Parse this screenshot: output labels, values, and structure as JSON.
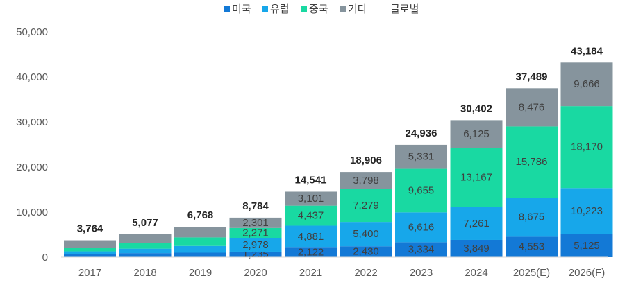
{
  "chart_data": {
    "type": "bar",
    "stacked": true,
    "categories": [
      "2017",
      "2018",
      "2019",
      "2020",
      "2021",
      "2022",
      "2023",
      "2024",
      "2025(E)",
      "2026(F)"
    ],
    "series": [
      {
        "name": "미국",
        "color": "#1379d6",
        "values": [
          null,
          null,
          null,
          1235,
          2122,
          2430,
          3334,
          3849,
          4553,
          5125
        ]
      },
      {
        "name": "유럽",
        "color": "#17a7ea",
        "values": [
          null,
          null,
          null,
          2978,
          4881,
          5400,
          6616,
          7261,
          8675,
          10223
        ]
      },
      {
        "name": "중국",
        "color": "#19d9a2",
        "values": [
          null,
          null,
          null,
          2271,
          4437,
          7279,
          9655,
          13167,
          15786,
          18170
        ]
      },
      {
        "name": "기타",
        "color": "#86949d",
        "values": [
          null,
          null,
          null,
          2301,
          3101,
          3798,
          5331,
          6125,
          8476,
          9666
        ]
      }
    ],
    "unlabeled_segments": [
      [
        700,
        600,
        700,
        1764
      ],
      [
        900,
        1000,
        1300,
        1877
      ],
      [
        1000,
        1500,
        1900,
        2368
      ]
    ],
    "totals_series": {
      "name": "글로벌",
      "values": [
        3764,
        5077,
        6768,
        8784,
        14541,
        18906,
        24936,
        30402,
        37489,
        43184
      ]
    },
    "y_ticks": [
      0,
      10000,
      20000,
      30000,
      40000,
      50000
    ],
    "y_tick_labels": [
      "0",
      "10,000",
      "20,000",
      "30,000",
      "40,000",
      "50,000"
    ],
    "ylim": [
      0,
      50000
    ],
    "legend_position": "top",
    "grid": false,
    "title": "",
    "xlabel": "",
    "ylabel": ""
  }
}
